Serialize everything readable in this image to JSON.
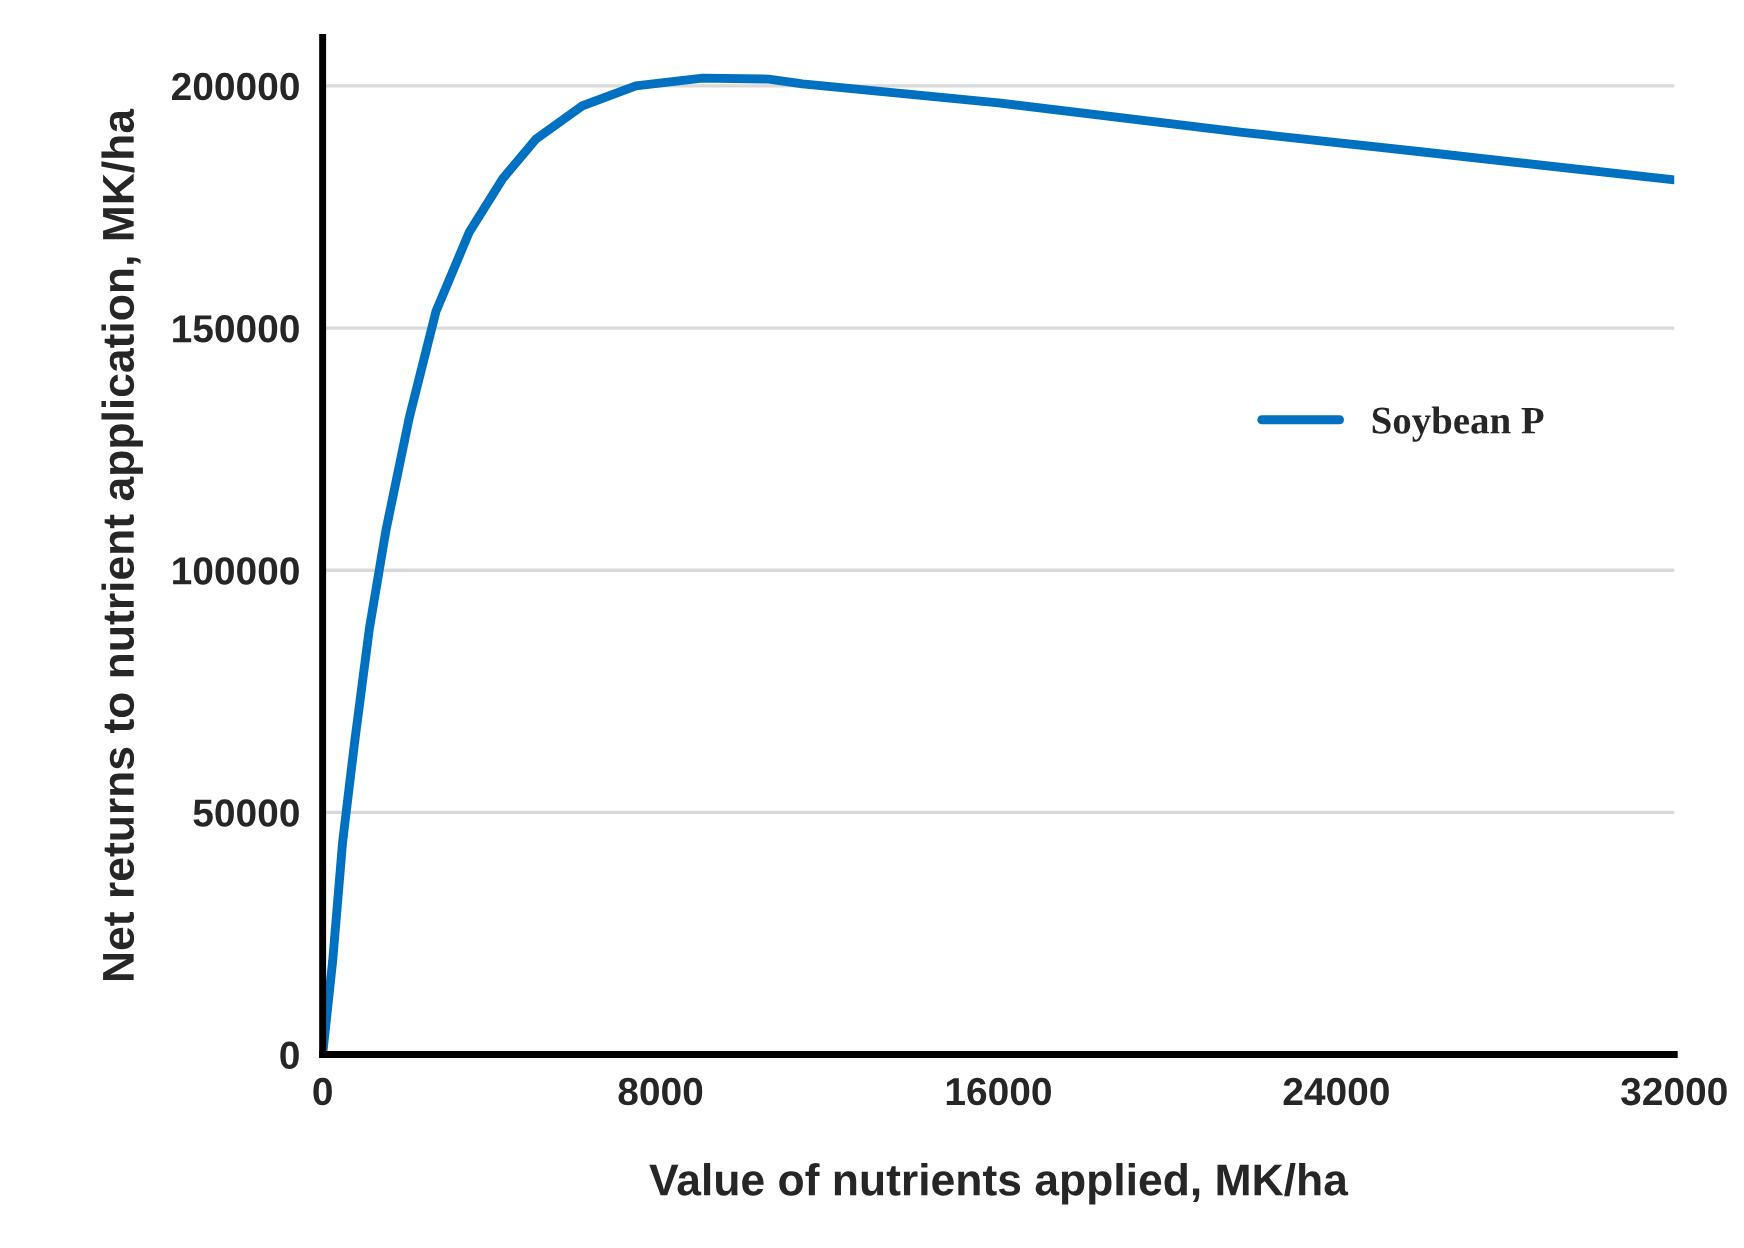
{
  "chart_data": {
    "type": "line",
    "xlabel": "Value of nutrients applied, MK/ha",
    "ylabel": "Net returns to nutrient application, MK/ha",
    "series": [
      {
        "name": "Soybean P",
        "color": "#0070c0",
        "x": [
          0,
          237,
          473,
          757,
          1104,
          1500,
          2051,
          2682,
          3471,
          4260,
          5049,
          6154,
          7416,
          8994,
          10560,
          11361,
          16000,
          21775,
          26000,
          32000
        ],
        "values": [
          0,
          19300,
          43900,
          64500,
          87800,
          108300,
          131500,
          153400,
          169800,
          180800,
          189000,
          195900,
          200000,
          201600,
          201400,
          200400,
          196500,
          190400,
          186400,
          180600
        ]
      }
    ],
    "xlim": [
      0,
      32000
    ],
    "xticks": [
      0,
      8000,
      16000,
      24000,
      32000
    ],
    "ylim": [
      0,
      210000
    ],
    "yticks": [
      0,
      50000,
      100000,
      150000,
      200000
    ],
    "grid": "y",
    "legend": "right",
    "line_style": "solid"
  }
}
